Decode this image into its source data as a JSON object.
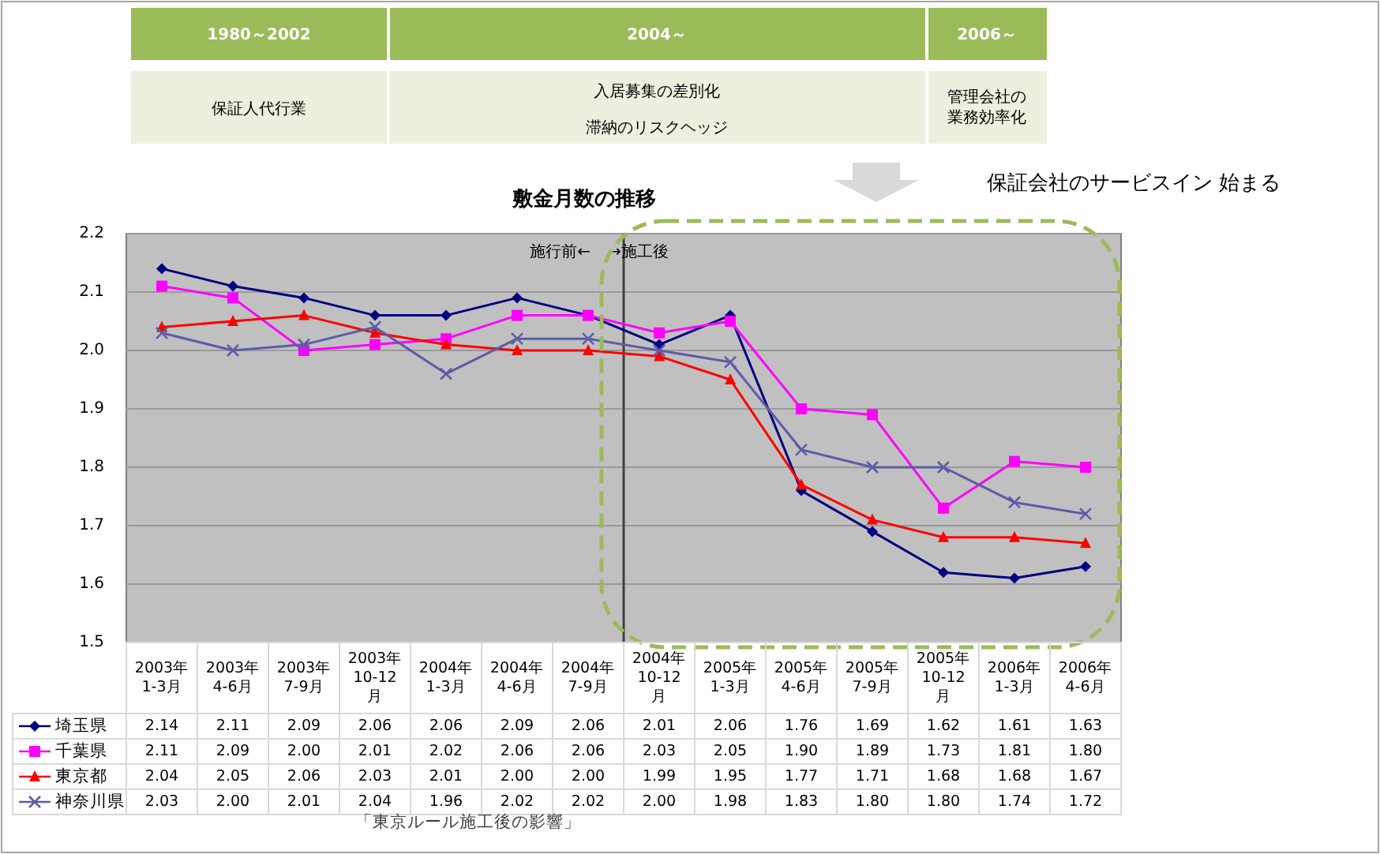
{
  "chart_data": {
    "type": "line",
    "title": "敷金月数の推移",
    "categories": [
      "2003年\n1-3月",
      "2003年\n4-6月",
      "2003年\n7-9月",
      "2003年\n10-12\n月",
      "2004年\n1-3月",
      "2004年\n4-6月",
      "2004年\n7-9月",
      "2004年\n10-12\n月",
      "2005年\n1-3月",
      "2005年\n4-6月",
      "2005年\n7-9月",
      "2005年\n10-12\n月",
      "2006年\n1-3月",
      "2006年\n4-6月"
    ],
    "series": [
      {
        "name": "埼玉県",
        "color": "#000080",
        "marker": "diamond",
        "values": [
          2.14,
          2.11,
          2.09,
          2.06,
          2.06,
          2.09,
          2.06,
          2.01,
          2.06,
          1.76,
          1.69,
          1.62,
          1.61,
          1.63
        ],
        "value_labels": [
          "2.14",
          "2.11",
          "2.09",
          "2.06",
          "2.06",
          "2.09",
          "2.06",
          "2.01",
          "2.06",
          "1.76",
          "1.69",
          "1.62",
          "1.61",
          "1.63"
        ]
      },
      {
        "name": "千葉県",
        "color": "#ff00ff",
        "marker": "square",
        "values": [
          2.11,
          2.09,
          2.0,
          2.01,
          2.02,
          2.06,
          2.06,
          2.03,
          2.05,
          1.9,
          1.89,
          1.73,
          1.81,
          1.8
        ],
        "value_labels": [
          "2.11",
          "2.09",
          "2.00",
          "2.01",
          "2.02",
          "2.06",
          "2.06",
          "2.03",
          "2.05",
          "1.90",
          "1.89",
          "1.73",
          "1.81",
          "1.80"
        ]
      },
      {
        "name": "東京都",
        "color": "#ff0000",
        "marker": "triangle",
        "values": [
          2.04,
          2.05,
          2.06,
          2.03,
          2.01,
          2.0,
          2.0,
          1.99,
          1.95,
          1.77,
          1.71,
          1.68,
          1.68,
          1.67
        ],
        "value_labels": [
          "2.04",
          "2.05",
          "2.06",
          "2.03",
          "2.01",
          "2.00",
          "2.00",
          "1.99",
          "1.95",
          "1.77",
          "1.71",
          "1.68",
          "1.68",
          "1.67"
        ]
      },
      {
        "name": "神奈川県",
        "color": "#5c5ca8",
        "marker": "cross",
        "values": [
          2.03,
          2.0,
          2.01,
          2.04,
          1.96,
          2.02,
          2.02,
          2.0,
          1.98,
          1.83,
          1.8,
          1.8,
          1.74,
          1.72
        ],
        "value_labels": [
          "2.03",
          "2.00",
          "2.01",
          "2.04",
          "1.96",
          "2.02",
          "2.02",
          "2.00",
          "1.98",
          "1.83",
          "1.80",
          "1.80",
          "1.74",
          "1.72"
        ]
      }
    ],
    "ylim": [
      1.5,
      2.2
    ],
    "yticks": [
      {
        "value": 1.5,
        "label": "1.5"
      },
      {
        "value": 1.6,
        "label": "1.6"
      },
      {
        "value": 1.7,
        "label": "1.7"
      },
      {
        "value": 1.8,
        "label": "1.8"
      },
      {
        "value": 1.9,
        "label": "1.9"
      },
      {
        "value": 2.0,
        "label": "2.0"
      },
      {
        "value": 2.1,
        "label": "2.1"
      },
      {
        "value": 2.2,
        "label": "2.2"
      }
    ],
    "grid": "y",
    "legend": "bottom",
    "ref_lines": [
      {
        "axis": "x",
        "value": "2004年\n10-12\n月",
        "color": "#404040"
      }
    ],
    "annotations": [
      "1980～2002",
      "2004～",
      "2006～",
      "保証人代行業",
      "入居募集の差別化",
      "滞納のリスクヘッジ",
      "管理会社の業務効率化",
      "保証会社のサービスイン 始まる",
      "施行前←",
      "→施工後",
      "「東京ルール施工後の影響」"
    ]
  }
}
